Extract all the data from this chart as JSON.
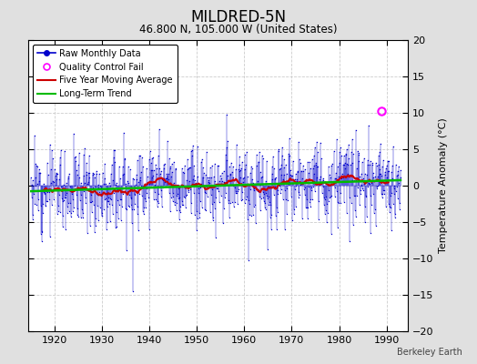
{
  "title": "MILDRED-5N",
  "subtitle": "46.800 N, 105.000 W (United States)",
  "ylabel": "Temperature Anomaly (°C)",
  "watermark": "Berkeley Earth",
  "xlim": [
    1914.5,
    1994.5
  ],
  "ylim": [
    -20,
    20
  ],
  "yticks": [
    -20,
    -15,
    -10,
    -5,
    0,
    5,
    10,
    15,
    20
  ],
  "xticks": [
    1920,
    1930,
    1940,
    1950,
    1960,
    1970,
    1980,
    1990
  ],
  "bg_color": "#e0e0e0",
  "plot_bg_color": "#ffffff",
  "raw_color": "#0000cc",
  "moving_avg_color": "#cc0000",
  "trend_color": "#00bb00",
  "qc_fail_color": "#ff00ff",
  "seed": 12,
  "n_years_start": 1915,
  "n_years_end": 1992,
  "n_months": 12,
  "qc_fail_year": 1989.0,
  "qc_fail_value": 10.2,
  "extreme_neg_year": 1936.5,
  "extreme_neg_value": -14.5
}
